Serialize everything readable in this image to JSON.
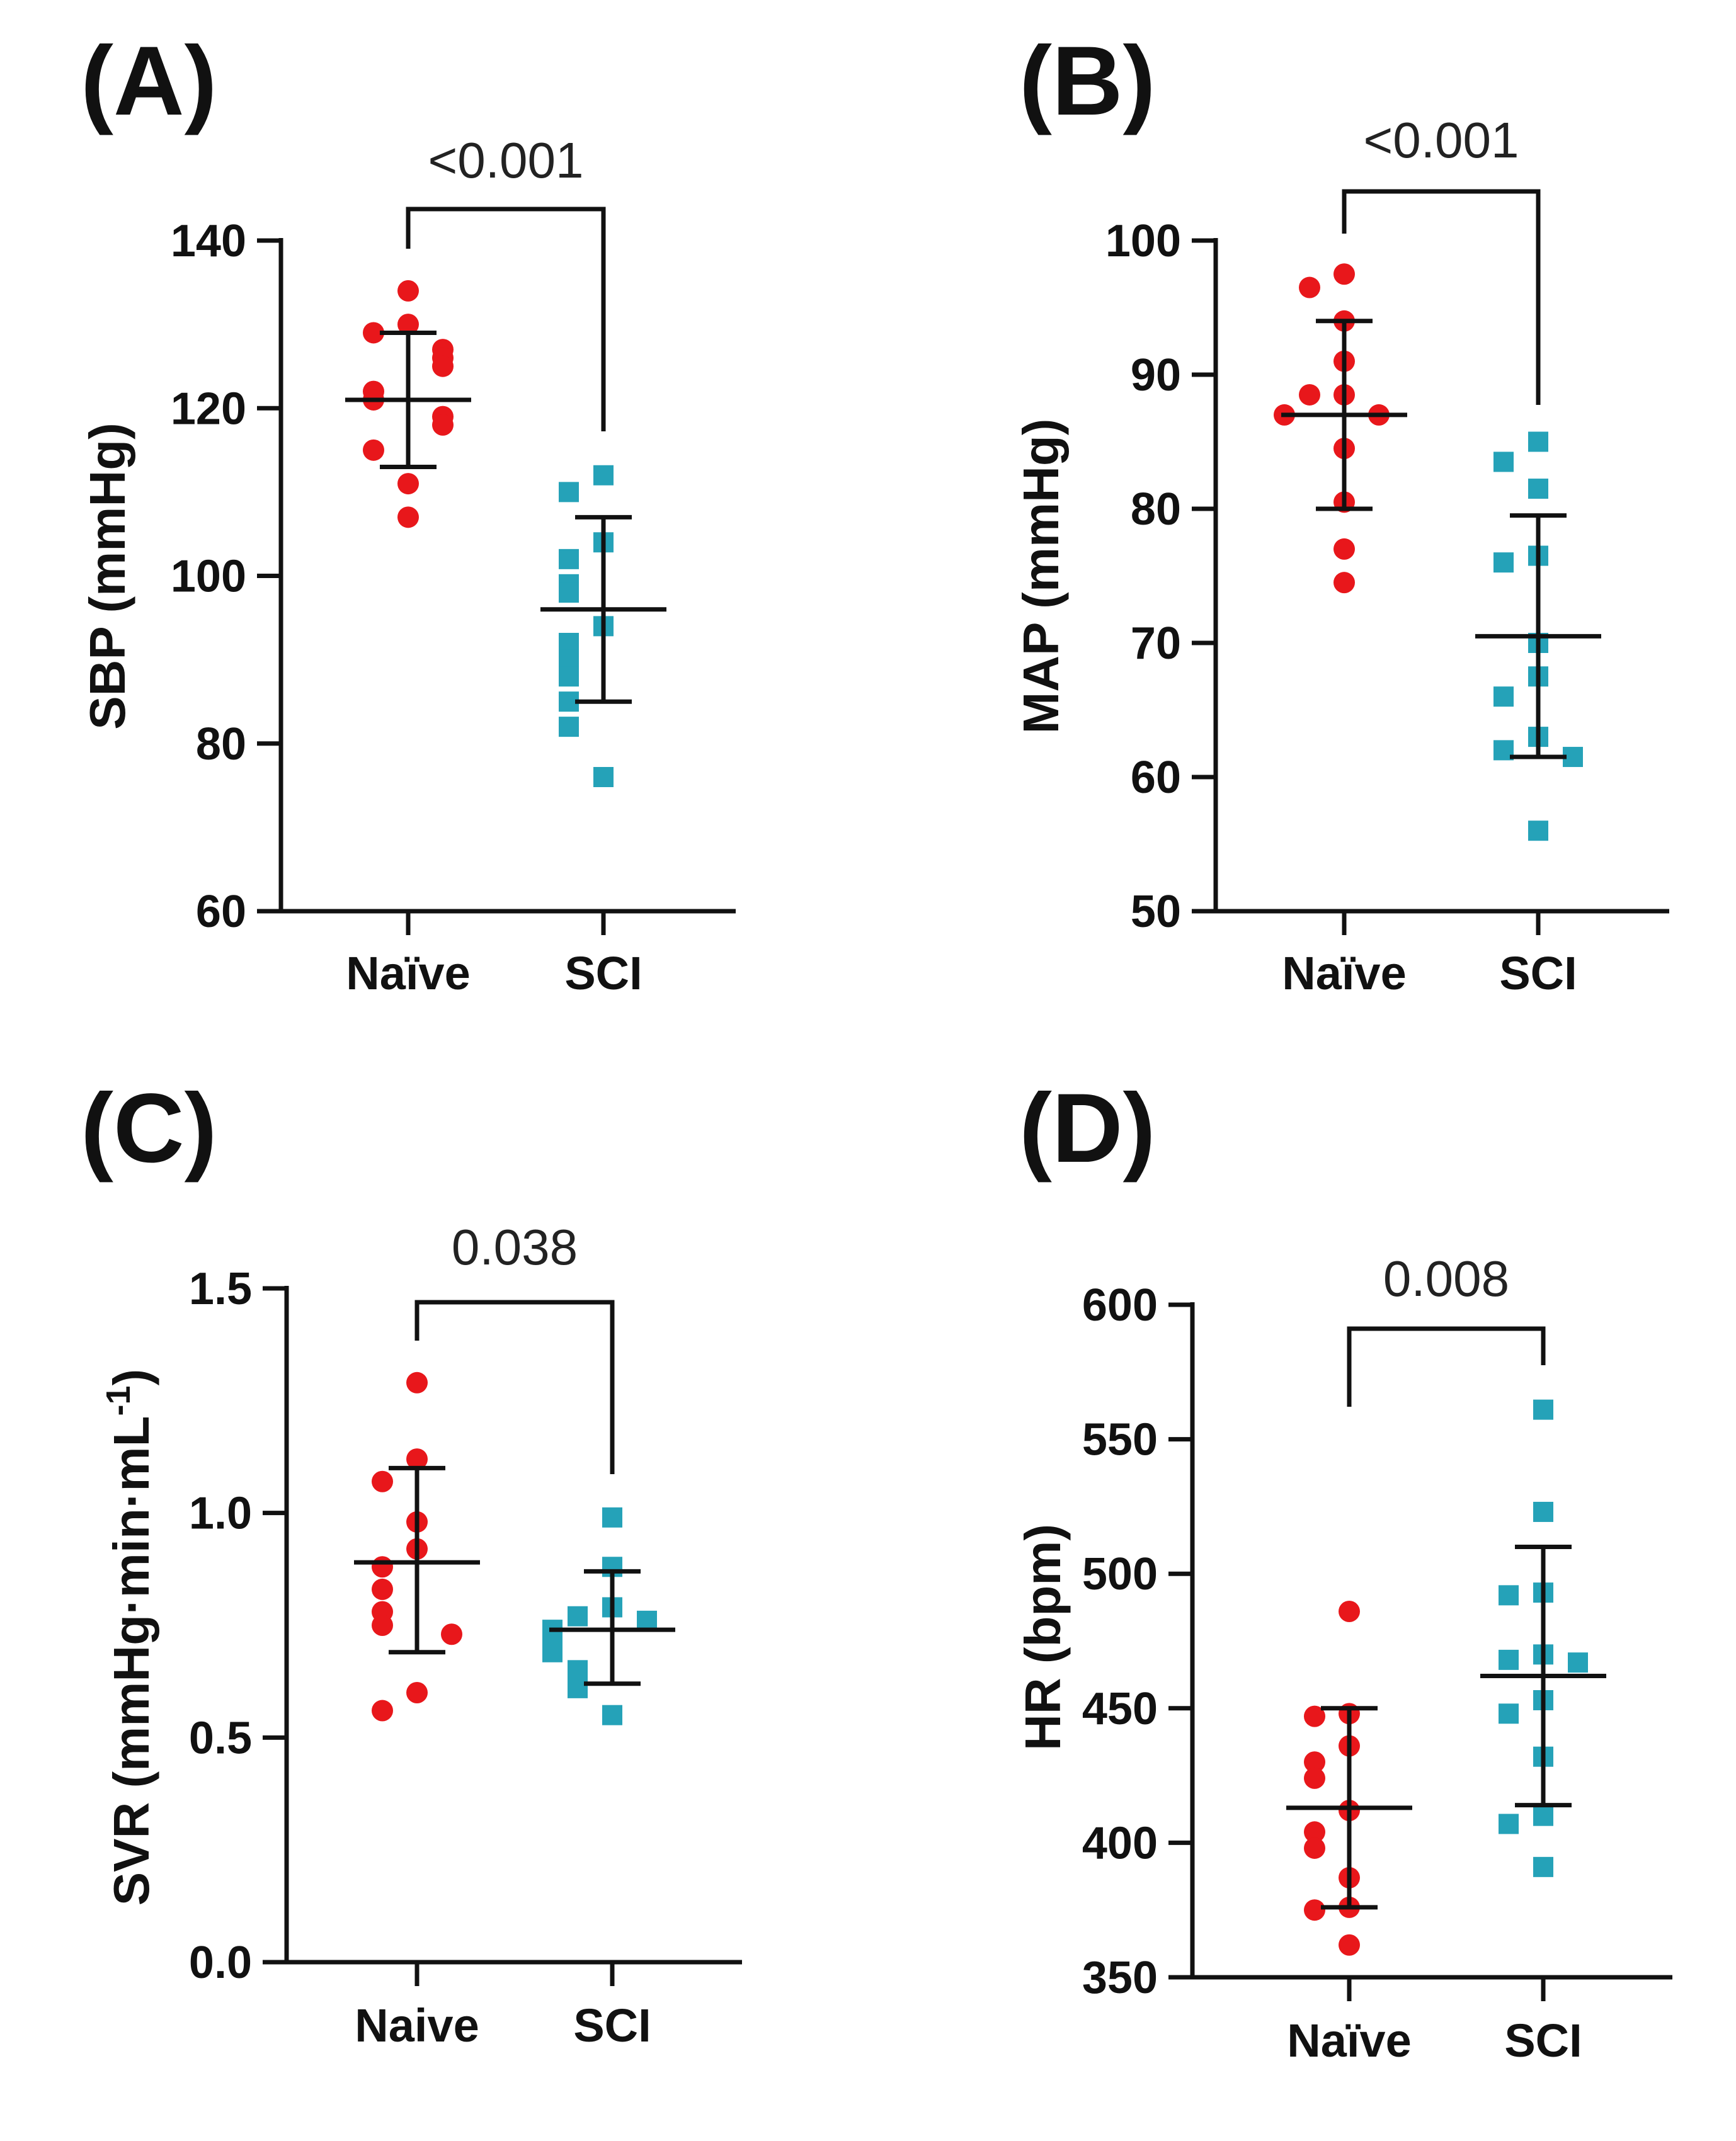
{
  "figure": {
    "colors": {
      "naive": "#e8171b",
      "sci": "#25a2b8",
      "ink": "#111111"
    }
  },
  "chart_data": [
    {
      "panel": "(A)",
      "type": "scatter",
      "xlabel": "",
      "ylabel": "SBP (mmHg)",
      "ylim": [
        60,
        140
      ],
      "yticks": [
        "60",
        "80",
        "100",
        "120",
        "140"
      ],
      "categories": [
        "Naïve",
        "SCI"
      ],
      "comparison": "<0.001",
      "groups": [
        {
          "name": "Naïve",
          "marker": "circle",
          "mean": 121,
          "sd_low": 113,
          "sd_high": 129,
          "values": [
            134,
            130,
            129,
            127,
            126,
            125,
            122,
            121,
            119,
            118,
            115,
            111,
            107
          ]
        },
        {
          "name": "SCI",
          "marker": "square",
          "mean": 96,
          "sd_low": 85,
          "sd_high": 107,
          "values": [
            112,
            110,
            104,
            102,
            99,
            98,
            94,
            92,
            90,
            88,
            85,
            82,
            76
          ]
        }
      ]
    },
    {
      "panel": "(B)",
      "type": "scatter",
      "xlabel": "",
      "ylabel": "MAP (mmHg)",
      "ylim": [
        50,
        100
      ],
      "yticks": [
        "50",
        "60",
        "70",
        "80",
        "90",
        "100"
      ],
      "categories": [
        "Naïve",
        "SCI"
      ],
      "comparison": "<0.001",
      "groups": [
        {
          "name": "Naïve",
          "marker": "circle",
          "mean": 87,
          "sd_low": 80,
          "sd_high": 94,
          "values": [
            97.5,
            96.5,
            94,
            91,
            88.5,
            88.5,
            87,
            87,
            84.5,
            80.5,
            77,
            74.5
          ]
        },
        {
          "name": "SCI",
          "marker": "square",
          "mean": 70.5,
          "sd_low": 61.5,
          "sd_high": 79.5,
          "values": [
            85,
            83.5,
            81.5,
            76.5,
            76,
            70,
            67.5,
            66,
            63,
            62,
            61.5,
            56
          ]
        }
      ]
    },
    {
      "panel": "(C)",
      "type": "scatter",
      "xlabel": "",
      "ylabel": "SVR (mmHg·min·mL",
      "ylabel_superscript": "-1",
      "ylabel_close": ")",
      "ylim": [
        0.0,
        1.5
      ],
      "yticks": [
        "0.0",
        "0.5",
        "1.0",
        "1.5"
      ],
      "categories": [
        "Naive",
        "SCI"
      ],
      "comparison": "0.038",
      "groups": [
        {
          "name": "Naive",
          "marker": "circle",
          "mean": 0.89,
          "sd_low": 0.69,
          "sd_high": 1.1,
          "values": [
            1.29,
            1.12,
            1.07,
            0.98,
            0.92,
            0.88,
            0.83,
            0.78,
            0.75,
            0.73,
            0.6,
            0.56
          ]
        },
        {
          "name": "SCI",
          "marker": "square",
          "mean": 0.74,
          "sd_low": 0.62,
          "sd_high": 0.87,
          "values": [
            0.99,
            0.88,
            0.79,
            0.77,
            0.76,
            0.74,
            0.72,
            0.71,
            0.69,
            0.65,
            0.61,
            0.55
          ]
        }
      ]
    },
    {
      "panel": "(D)",
      "type": "scatter",
      "xlabel": "",
      "ylabel": "HR (bpm)",
      "ylim": [
        350,
        600
      ],
      "yticks": [
        "350",
        "400",
        "450",
        "500",
        "550",
        "600"
      ],
      "categories": [
        "Naïve",
        "SCI"
      ],
      "comparison": "0.008",
      "groups": [
        {
          "name": "Naïve",
          "marker": "circle",
          "mean": 413,
          "sd_low": 376,
          "sd_high": 450,
          "values": [
            486,
            448,
            447,
            436,
            430,
            424,
            412,
            404,
            398,
            387,
            376,
            375,
            362
          ]
        },
        {
          "name": "SCI",
          "marker": "square",
          "mean": 462,
          "sd_low": 414,
          "sd_high": 510,
          "values": [
            561,
            523,
            493,
            492,
            470,
            468,
            467,
            453,
            448,
            432,
            410,
            407,
            391
          ]
        }
      ]
    }
  ]
}
